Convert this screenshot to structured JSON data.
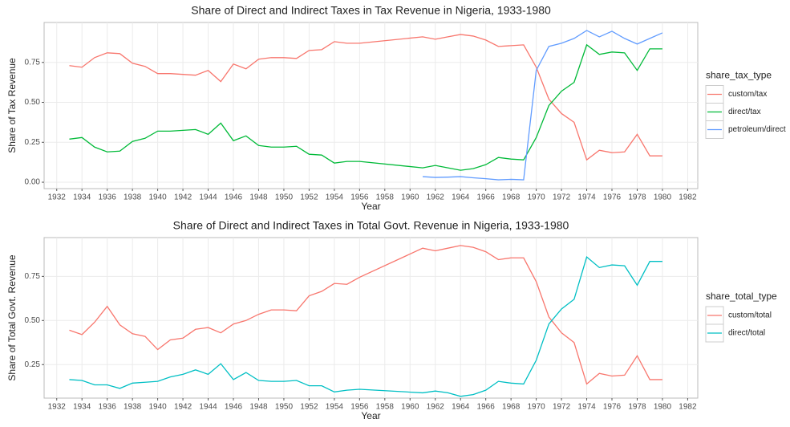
{
  "chart_data": [
    {
      "type": "line",
      "title": "Share of Direct and Indirect Taxes in Tax Revenue in Nigeria, 1933-1980",
      "x_label": "Year",
      "y_label": "Share of Tax Revenue",
      "legend_title": "share_tax_type",
      "legend": "right",
      "grid": true,
      "x": [
        1933,
        1934,
        1935,
        1936,
        1937,
        1938,
        1939,
        1940,
        1941,
        1942,
        1943,
        1944,
        1945,
        1946,
        1947,
        1948,
        1949,
        1950,
        1951,
        1952,
        1953,
        1954,
        1955,
        1956,
        1961,
        1962,
        1963,
        1964,
        1965,
        1966,
        1967,
        1968,
        1969,
        1970,
        1971,
        1972,
        1973,
        1974,
        1975,
        1976,
        1977,
        1978,
        1979,
        1980
      ],
      "series": [
        {
          "name": "custom/tax",
          "color": "#F8766D",
          "values": [
            0.73,
            0.72,
            0.78,
            0.81,
            0.805,
            0.745,
            0.725,
            0.68,
            0.68,
            0.675,
            0.67,
            0.7,
            0.63,
            0.74,
            0.71,
            0.77,
            0.78,
            0.78,
            0.775,
            0.825,
            0.83,
            0.88,
            0.87,
            0.87,
            0.91,
            0.895,
            0.91,
            0.925,
            0.915,
            0.89,
            0.85,
            0.855,
            0.86,
            0.72,
            0.52,
            0.43,
            0.375,
            0.14,
            0.2,
            0.185,
            0.19,
            0.3,
            0.165,
            0.165
          ]
        },
        {
          "name": "direct/tax",
          "color": "#00BA38",
          "values": [
            0.27,
            0.28,
            0.22,
            0.19,
            0.195,
            0.255,
            0.275,
            0.32,
            0.32,
            0.325,
            0.33,
            0.3,
            0.37,
            0.26,
            0.29,
            0.23,
            0.22,
            0.22,
            0.225,
            0.175,
            0.17,
            0.12,
            0.13,
            0.13,
            0.09,
            0.105,
            0.09,
            0.075,
            0.085,
            0.11,
            0.155,
            0.145,
            0.14,
            0.28,
            0.48,
            0.57,
            0.625,
            0.86,
            0.8,
            0.815,
            0.81,
            0.7,
            0.835,
            0.835
          ]
        },
        {
          "name": "petroleum/direct",
          "color": "#619CFF",
          "values": [
            null,
            null,
            null,
            null,
            null,
            null,
            null,
            null,
            null,
            null,
            null,
            null,
            null,
            null,
            null,
            null,
            null,
            null,
            null,
            null,
            null,
            null,
            null,
            null,
            0.035,
            0.03,
            0.032,
            0.035,
            0.028,
            0.022,
            0.015,
            0.018,
            0.015,
            0.7,
            0.85,
            0.87,
            0.9,
            0.95,
            0.91,
            0.945,
            0.9,
            0.865,
            0.9,
            0.935
          ]
        }
      ],
      "xlim": [
        1931,
        1982.8
      ],
      "xticks": [
        1932,
        1934,
        1936,
        1938,
        1940,
        1942,
        1944,
        1946,
        1948,
        1950,
        1952,
        1954,
        1956,
        1958,
        1960,
        1962,
        1964,
        1966,
        1968,
        1970,
        1972,
        1974,
        1976,
        1978,
        1980,
        1982
      ],
      "ylim": [
        -0.04,
        1.0
      ],
      "yticks": [
        {
          "value": 0,
          "label": "0.00"
        },
        {
          "value": 0.25,
          "label": "0.25"
        },
        {
          "value": 0.5,
          "label": "0.50"
        },
        {
          "value": 0.75,
          "label": "0.75"
        }
      ]
    },
    {
      "type": "line",
      "title": "Share of Direct and Indirect Taxes in Total Govt. Revenue in Nigeria, 1933-1980",
      "x_label": "Year",
      "y_label": "Share of Total Govt. Revenue",
      "legend_title": "share_total_type",
      "legend": "right",
      "grid": true,
      "x": [
        1933,
        1934,
        1935,
        1936,
        1937,
        1938,
        1939,
        1940,
        1941,
        1942,
        1943,
        1944,
        1945,
        1946,
        1947,
        1948,
        1949,
        1950,
        1951,
        1952,
        1953,
        1954,
        1955,
        1956,
        1961,
        1962,
        1963,
        1964,
        1965,
        1966,
        1967,
        1968,
        1969,
        1970,
        1971,
        1972,
        1973,
        1974,
        1975,
        1976,
        1977,
        1978,
        1979,
        1980
      ],
      "series": [
        {
          "name": "custom/total",
          "color": "#F8766D",
          "values": [
            0.445,
            0.42,
            0.49,
            0.58,
            0.475,
            0.425,
            0.41,
            0.335,
            0.39,
            0.4,
            0.45,
            0.46,
            0.43,
            0.48,
            0.5,
            0.535,
            0.56,
            0.56,
            0.555,
            0.64,
            0.665,
            0.71,
            0.705,
            0.745,
            0.91,
            0.895,
            0.91,
            0.925,
            0.915,
            0.89,
            0.845,
            0.855,
            0.855,
            0.72,
            0.52,
            0.43,
            0.375,
            0.14,
            0.2,
            0.185,
            0.19,
            0.3,
            0.165,
            0.165
          ]
        },
        {
          "name": "direct/total",
          "color": "#00BFC4",
          "values": [
            0.165,
            0.16,
            0.135,
            0.135,
            0.115,
            0.145,
            0.15,
            0.155,
            0.18,
            0.195,
            0.22,
            0.195,
            0.255,
            0.165,
            0.205,
            0.16,
            0.155,
            0.155,
            0.16,
            0.13,
            0.13,
            0.095,
            0.105,
            0.11,
            0.09,
            0.1,
            0.09,
            0.07,
            0.08,
            0.105,
            0.155,
            0.145,
            0.14,
            0.275,
            0.48,
            0.565,
            0.62,
            0.86,
            0.8,
            0.815,
            0.81,
            0.7,
            0.835,
            0.835
          ]
        }
      ],
      "xlim": [
        1931,
        1982.8
      ],
      "xticks": [
        1932,
        1934,
        1936,
        1938,
        1940,
        1942,
        1944,
        1946,
        1948,
        1950,
        1952,
        1954,
        1956,
        1958,
        1960,
        1962,
        1964,
        1966,
        1968,
        1970,
        1972,
        1974,
        1976,
        1978,
        1980,
        1982
      ],
      "ylim": [
        0.06,
        0.97
      ],
      "yticks": [
        {
          "value": 0.25,
          "label": "0.25"
        },
        {
          "value": 0.5,
          "label": "0.50"
        },
        {
          "value": 0.75,
          "label": "0.75"
        }
      ]
    }
  ]
}
